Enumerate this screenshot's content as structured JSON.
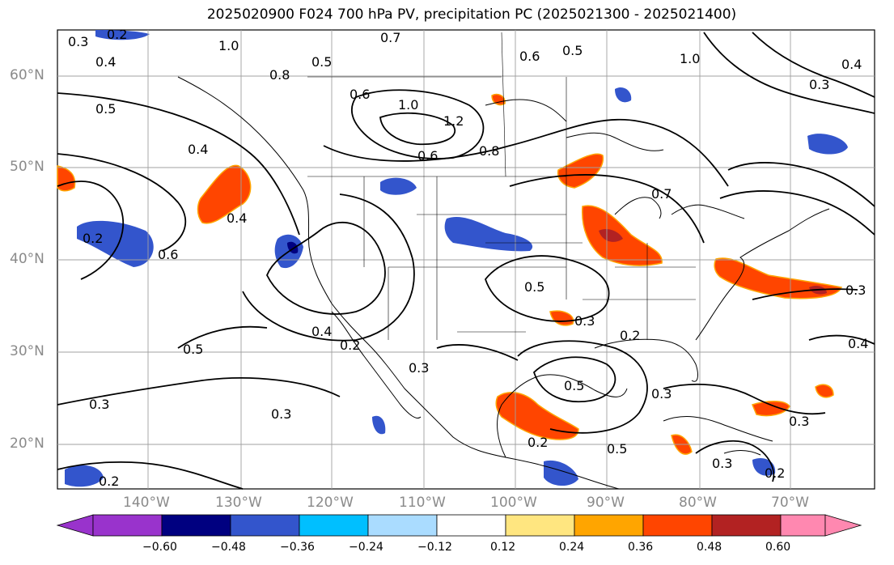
{
  "title": "2025020900 F024 700 hPa PV, precipitation PC (2025021300 - 2025021400)",
  "map": {
    "lat_labels": [
      "60°N",
      "50°N",
      "40°N",
      "30°N",
      "20°N"
    ],
    "lon_labels": [
      "140°W",
      "130°W",
      "120°W",
      "110°W",
      "100°W",
      "90°W",
      "80°W",
      "70°W"
    ],
    "contour_labels": [
      "0.3",
      "0.2",
      "0.4",
      "1.0",
      "0.8",
      "0.5",
      "0.7",
      "0.6",
      "0.5",
      "1.0",
      "0.4",
      "0.5",
      "0.6",
      "1.0",
      "1.2",
      "0.6",
      "0.8",
      "0.4",
      "0.2",
      "0.5",
      "0.4",
      "0.6",
      "0.3",
      "0.3",
      "0.5",
      "0.4",
      "0.2",
      "0.3",
      "0.5",
      "0.3",
      "0.3",
      "0.2",
      "0.3",
      "0.2",
      "0.5",
      "0.3",
      "0.2",
      "0.2",
      "0.3",
      "0.3",
      "0.4",
      "0.7"
    ],
    "colors": {
      "land_outline": "#000000",
      "grid": "#a0a0a0",
      "contour": "#000000"
    }
  },
  "colorbar": {
    "ticks": [
      "−0.60",
      "−0.48",
      "−0.36",
      "−0.24",
      "−0.12",
      "0.12",
      "0.24",
      "0.36",
      "0.48",
      "0.60"
    ],
    "colors": [
      "#9933cc",
      "#000080",
      "#3355cc",
      "#00bfff",
      "#aadcff",
      "#ffffff",
      "#ffe680",
      "#ffa500",
      "#ff4500",
      "#b22222",
      "#ff88b0"
    ]
  }
}
